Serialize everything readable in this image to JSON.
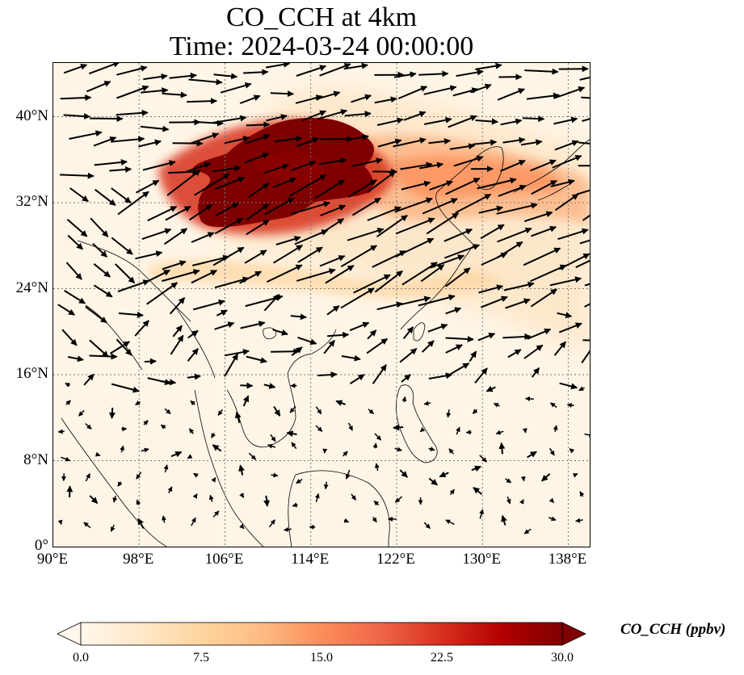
{
  "title": {
    "line1": "CO_CCH at 4km",
    "line2": "Time: 2024-03-24 00:00:00"
  },
  "map": {
    "lon_range": [
      90,
      140
    ],
    "lat_range": [
      0,
      45
    ],
    "gridlines": "dotted",
    "lat_ticks": [
      "0°",
      "8°N",
      "16°N",
      "24°N",
      "32°N",
      "40°N"
    ],
    "lon_ticks": [
      "90°E",
      "98°E",
      "106°E",
      "114°E",
      "122°E",
      "130°E",
      "138°E"
    ],
    "plume": {
      "core_color": "#800000",
      "core_extent_lon": [
        102,
        119
      ],
      "core_extent_lat": [
        29.5,
        40
      ],
      "eastward_tail_lat": [
        33,
        38
      ],
      "secondary_south_band_color": "#fdd9a8"
    },
    "wind_arrows": "black quiver, predominantly westerly/south-westerly north of 16°N"
  },
  "colorbar": {
    "label": "CO_CCH (ppbv)",
    "ticks": [
      "0.0",
      "7.5",
      "15.0",
      "22.5",
      "30.0"
    ],
    "range": [
      0,
      30
    ],
    "extend": "both",
    "colormap": "OrRd",
    "colors": [
      "#fff7ec",
      "#fee8c8",
      "#fdd49e",
      "#fdbb84",
      "#fc8d59",
      "#ef6548",
      "#d7301f",
      "#b30000",
      "#7f0000"
    ]
  }
}
